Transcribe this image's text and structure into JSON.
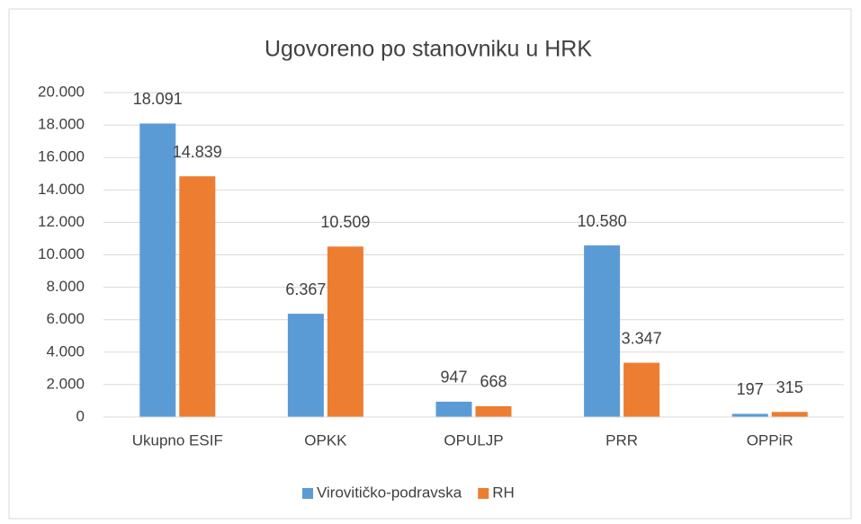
{
  "chart_data": {
    "type": "bar",
    "title": "Ugovoreno po stanovniku u HRK",
    "categories": [
      "Ukupno ESIF",
      "OPKK",
      "OPULJP",
      "PRR",
      "OPPiR"
    ],
    "series": [
      {
        "name": "Virovitičko-podravska",
        "color": "#5b9bd5",
        "values": [
          18091,
          6367,
          947,
          10580,
          197
        ],
        "value_labels": [
          "18.091",
          "6.367",
          "947",
          "10.580",
          "197"
        ]
      },
      {
        "name": "RH",
        "color": "#ed7d31",
        "values": [
          14839,
          10509,
          668,
          3347,
          315
        ],
        "value_labels": [
          "14.839",
          "10.509",
          "668",
          "3.347",
          "315"
        ]
      }
    ],
    "ylim": [
      0,
      20000
    ],
    "yticks": [
      0,
      {
        "value": 2000,
        "label": "2.000"
      },
      {
        "value": 4000,
        "label": "4.000"
      },
      {
        "value": 6000,
        "label": "6.000"
      },
      {
        "value": 8000,
        "label": "8.000"
      },
      {
        "value": 10000,
        "label": "10.000"
      },
      {
        "value": 12000,
        "label": "12.000"
      },
      {
        "value": 14000,
        "label": "14.000"
      },
      {
        "value": 16000,
        "label": "16.000"
      },
      {
        "value": 18000,
        "label": "18.000"
      },
      {
        "value": 20000,
        "label": "20.000"
      }
    ],
    "grid": true,
    "legend": "bottom"
  }
}
